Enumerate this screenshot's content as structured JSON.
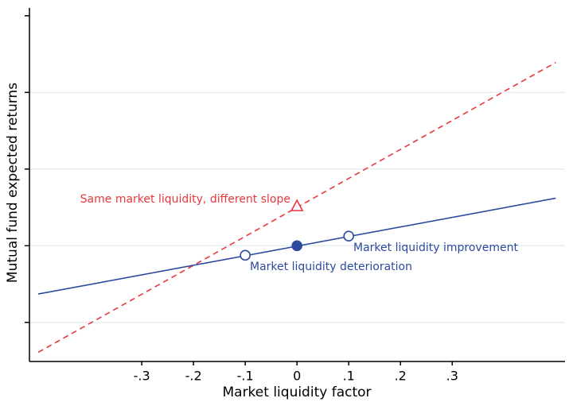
{
  "chart_data": {
    "type": "line",
    "x_label": "Market liquidity factor",
    "y_label": "Mutual fund expected returns",
    "xlim": [
      -0.517,
      0.518
    ],
    "ylim": [
      -1.51,
      3.05
    ],
    "xticks": [
      {
        "value": -0.3,
        "label": "-.3"
      },
      {
        "value": -0.2,
        "label": "-.2"
      },
      {
        "value": -0.1,
        "label": "-.1"
      },
      0,
      {
        "value": 0.1,
        "label": ".1"
      },
      {
        "value": 0.2,
        "label": ".2"
      },
      {
        "value": 0.3,
        "label": ".3"
      }
    ],
    "yticks": [
      -1,
      0,
      1,
      2,
      3
    ],
    "grid": true,
    "series": [
      {
        "x": [
          -0.5,
          0.5
        ],
        "values": [
          -1.39,
          2.39
        ],
        "color": "#e8383d",
        "style": "dashed"
      },
      {
        "x": [
          -0.5,
          0.5
        ],
        "values": [
          -0.63,
          0.62
        ],
        "color": "#2e4a9e",
        "style": "solid"
      }
    ],
    "points": {
      "x": [
        -0.1,
        0,
        0.1,
        0
      ],
      "values": [
        -0.125,
        0,
        0.125,
        0.52
      ],
      "markers": [
        "open-circle",
        "filled-circle",
        "open-circle",
        "triangle"
      ],
      "colors": [
        "#2e4a9e",
        "#2e4a9e",
        "#2e4a9e",
        "#e8383d"
      ]
    },
    "annotations": [
      {
        "text": "Same market liquidity, different slope",
        "color": "#e8383d"
      },
      {
        "text": "Market liquidity improvement",
        "color": "#2e4a9e"
      },
      {
        "text": "Market liquidity deterioration",
        "color": "#2e4a9e"
      }
    ]
  }
}
